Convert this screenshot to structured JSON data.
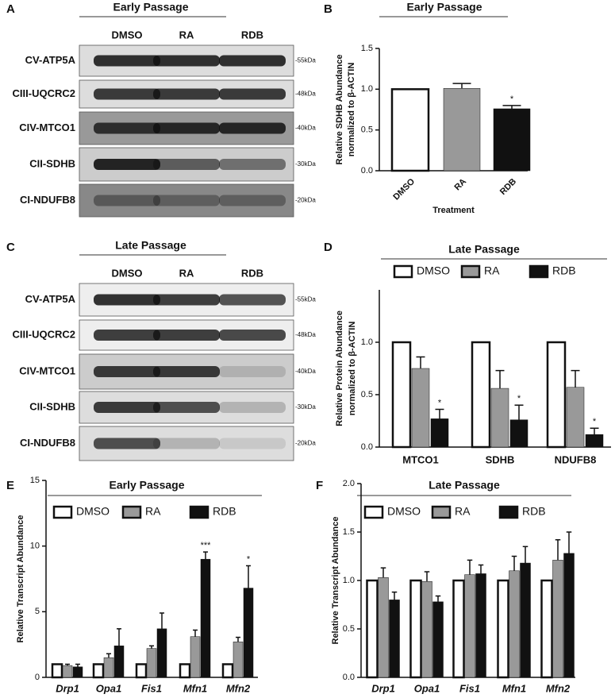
{
  "blots": [
    {
      "label": "A",
      "title": "Early Passage",
      "lanes": [
        "DMSO",
        "RA",
        "RDB"
      ],
      "rows": [
        "CV-ATP5A",
        "CIII-UQCRC2",
        "CIV-MTCO1",
        "CII-SDHB",
        "CI-NDUFB8"
      ],
      "sizes": [
        "-55kDa",
        "-48kDa",
        "-40kDa",
        "-30kDa",
        "-20kDa"
      ]
    },
    {
      "label": "C",
      "title": "Late Passage",
      "lanes": [
        "DMSO",
        "RA",
        "RDB"
      ],
      "rows": [
        "CV-ATP5A",
        "CIII-UQCRC2",
        "CIV-MTCO1",
        "CII-SDHB",
        "CI-NDUFB8"
      ],
      "sizes": [
        "-55kDa",
        "-48kDa",
        "-40kDa",
        "-30kDa",
        "-20kDa"
      ]
    }
  ],
  "chart_data": [
    {
      "type": "bar",
      "label": "B",
      "title": "Early Passage",
      "ylabel": [
        "Relative SDHB Abundance",
        "normalized to β-ACTIN"
      ],
      "xlabel": "Treatment",
      "categories": [
        "DMSO",
        "RA",
        "RDB"
      ],
      "values": [
        1.0,
        1.01,
        0.76
      ],
      "errors": [
        null,
        0.06,
        0.04
      ],
      "colors": [
        "#ffffff",
        "#999999",
        "#111111"
      ],
      "ylim": [
        0,
        1.5
      ],
      "yticks": [
        {
          "value": 0,
          "label": "0.0"
        },
        {
          "value": 0.5,
          "label": "0.5"
        },
        {
          "value": 1,
          "label": "1.0"
        },
        {
          "value": 1.5,
          "label": "1.5"
        }
      ],
      "annotations": [
        {
          "text": "*",
          "category": "RDB"
        }
      ]
    },
    {
      "type": "bar",
      "label": "D",
      "title": "Late Passage",
      "ylabel": [
        "Relative Protein Abundance",
        "normalized to β-ACTIN"
      ],
      "categories": [
        "MTCO1",
        "SDHB",
        "NDUFB8"
      ],
      "series": [
        {
          "name": "DMSO",
          "color": "#ffffff",
          "values": [
            1,
            1,
            1
          ]
        },
        {
          "name": "RA",
          "color": "#999999",
          "values": [
            0.75,
            0.56,
            0.57
          ],
          "errors": [
            0.11,
            0.17,
            0.16
          ]
        },
        {
          "name": "RDB",
          "color": "#111111",
          "values": [
            0.27,
            0.26,
            0.12
          ],
          "errors": [
            0.09,
            0.14,
            0.06
          ]
        }
      ],
      "ylim": [
        0,
        1.5
      ],
      "yticks": [
        {
          "value": 0,
          "label": "0.0"
        },
        {
          "value": 0.5,
          "label": "0.5"
        },
        {
          "value": 1,
          "label": "1.0"
        }
      ],
      "annotations": [
        {
          "text": "*",
          "category": "MTCO1",
          "series": "RDB"
        },
        {
          "text": "*",
          "category": "SDHB",
          "series": "RDB"
        },
        {
          "text": "*",
          "category": "NDUFB8",
          "series": "RDB"
        }
      ]
    },
    {
      "type": "bar",
      "label": "E",
      "title": "Early Passage",
      "ylabel": [
        "Relative Transcript Abundance"
      ],
      "categories": [
        "Drp1",
        "Opa1",
        "Fis1",
        "Mfn1",
        "Mfn2"
      ],
      "series": [
        {
          "name": "DMSO",
          "color": "#ffffff",
          "values": [
            1,
            1,
            1,
            1,
            1
          ]
        },
        {
          "name": "RA",
          "color": "#999999",
          "values": [
            0.9,
            1.5,
            2.2,
            3.1,
            2.7
          ],
          "errors": [
            0.1,
            0.3,
            0.2,
            0.5,
            0.35
          ]
        },
        {
          "name": "RDB",
          "color": "#111111",
          "values": [
            0.8,
            2.4,
            3.7,
            9.0,
            6.8
          ],
          "errors": [
            0.2,
            1.3,
            1.2,
            0.55,
            1.7
          ]
        }
      ],
      "ylim": [
        0,
        15
      ],
      "yticks": [
        0,
        5,
        10,
        15
      ],
      "annotations": [
        {
          "text": "***",
          "category": "Mfn1",
          "series": "RDB"
        },
        {
          "text": "*",
          "category": "Mfn2",
          "series": "RDB"
        }
      ]
    },
    {
      "type": "bar",
      "label": "F",
      "title": "Late Passage",
      "ylabel": [
        "Relative Transcript Abundance"
      ],
      "categories": [
        "Drp1",
        "Opa1",
        "Fis1",
        "Mfn1",
        "Mfn2"
      ],
      "series": [
        {
          "name": "DMSO",
          "color": "#ffffff",
          "values": [
            1,
            1,
            1,
            1,
            1
          ]
        },
        {
          "name": "RA",
          "color": "#999999",
          "values": [
            1.03,
            0.99,
            1.06,
            1.1,
            1.21
          ],
          "errors": [
            0.1,
            0.1,
            0.15,
            0.15,
            0.21
          ]
        },
        {
          "name": "RDB",
          "color": "#111111",
          "values": [
            0.8,
            0.78,
            1.07,
            1.18,
            1.28
          ],
          "errors": [
            0.08,
            0.06,
            0.09,
            0.17,
            0.22
          ]
        }
      ],
      "ylim": [
        0,
        2
      ],
      "yticks": [
        {
          "value": 0,
          "label": "0.0"
        },
        {
          "value": 0.5,
          "label": "0.5"
        },
        {
          "value": 1,
          "label": "1.0"
        },
        {
          "value": 1.5,
          "label": "1.5"
        },
        {
          "value": 2,
          "label": "2.0"
        }
      ],
      "annotations": []
    }
  ]
}
